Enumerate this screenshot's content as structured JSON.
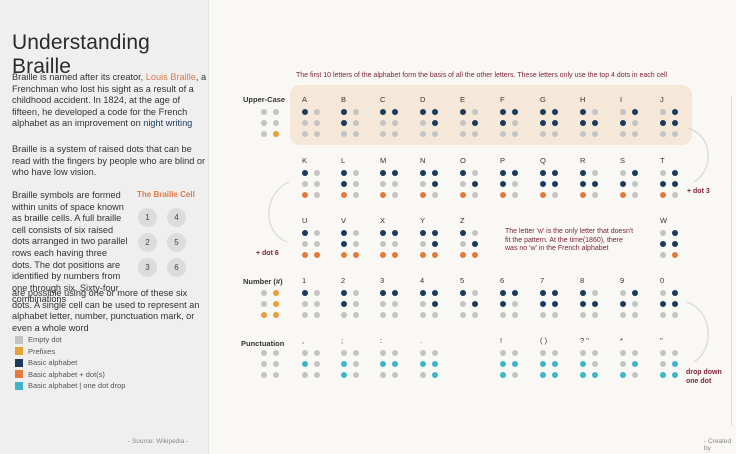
{
  "title": "Understanding Braille",
  "intro": {
    "p1_a": "Braille is named after its creator, ",
    "p1_link": "Louis Braille",
    "p1_b": ", a Frenchman who lost his sight as a result of a childhood accident. In 1824, at the age of fifteen, he developed a code for the French alphabet as an improvement on ",
    "p1_link2": "night writing",
    "p2": "Braille is a system of raised dots that can be read with the fingers by people who are blind or who have low vision.",
    "p3": "Braille symbols are formed within units of space known as braille cells. A full braille cell consists of six raised dots arranged in two parallel rows each having three dots. The dot positions are identified by numbers from one through six. Sixty-four combinations",
    "p4": "are possible using one or more of these six dots. A single cell can be used to represent an alphabet letter, number, punctuation mark, or even a whole word"
  },
  "cell": {
    "title": "The Braille Cell",
    "numbers": [
      "1",
      "2",
      "3",
      "4",
      "5",
      "6"
    ]
  },
  "legend": [
    {
      "label": "Empty dot",
      "color": "#c4c4c4"
    },
    {
      "label": "Prefixes",
      "color": "#e8a03a"
    },
    {
      "label": "Basic alphabet",
      "color": "#1b3a5c"
    },
    {
      "label": "Basic alphabet + dot(s)",
      "color": "#e57a3c"
    },
    {
      "label": "Basic alphabet | one dot drop",
      "color": "#3fb5c8"
    }
  ],
  "source": "- Source: Wikipedia -",
  "credit": "- Created by",
  "chart_intro": "The first 10 letters of the alphabet form the basis of all the other letters. These letters only use the top 4 dots in each cell",
  "row_labels": {
    "upper": "Upper-Case",
    "number": "Number (#)",
    "punct": "Punctuation"
  },
  "notes": {
    "dot3": "+ dot 3",
    "dot6": "+ dot 6",
    "drop_a": "drop down",
    "drop_b": "one dot",
    "w": "The letter 'w' is the only letter that doesn't fit the pattern. At the time(1860), there was no 'w' in the French alphabet"
  },
  "rows": [
    {
      "prefix": "000001",
      "cells": [
        {
          "label": "A",
          "pattern": "100000",
          "kind": "basic"
        },
        {
          "label": "B",
          "pattern": "110000",
          "kind": "basic"
        },
        {
          "label": "C",
          "pattern": "100100",
          "kind": "basic"
        },
        {
          "label": "D",
          "pattern": "100110",
          "kind": "basic"
        },
        {
          "label": "E",
          "pattern": "100010",
          "kind": "basic"
        },
        {
          "label": "F",
          "pattern": "110100",
          "kind": "basic"
        },
        {
          "label": "G",
          "pattern": "110110",
          "kind": "basic"
        },
        {
          "label": "H",
          "pattern": "110010",
          "kind": "basic"
        },
        {
          "label": "I",
          "pattern": "010100",
          "kind": "basic"
        },
        {
          "label": "J",
          "pattern": "010110",
          "kind": "basic"
        }
      ]
    },
    {
      "prefix": "",
      "cells": [
        {
          "label": "K",
          "pattern": "101000",
          "kind": "plus"
        },
        {
          "label": "L",
          "pattern": "111000",
          "kind": "plus"
        },
        {
          "label": "M",
          "pattern": "101100",
          "kind": "plus"
        },
        {
          "label": "N",
          "pattern": "101110",
          "kind": "plus"
        },
        {
          "label": "O",
          "pattern": "101010",
          "kind": "plus"
        },
        {
          "label": "P",
          "pattern": "111100",
          "kind": "plus"
        },
        {
          "label": "Q",
          "pattern": "111110",
          "kind": "plus"
        },
        {
          "label": "R",
          "pattern": "111010",
          "kind": "plus"
        },
        {
          "label": "S",
          "pattern": "011100",
          "kind": "plus"
        },
        {
          "label": "T",
          "pattern": "011110",
          "kind": "plus"
        }
      ]
    },
    {
      "prefix": "",
      "cells": [
        {
          "label": "U",
          "pattern": "101001",
          "kind": "plus"
        },
        {
          "label": "V",
          "pattern": "111001",
          "kind": "plus"
        },
        {
          "label": "X",
          "pattern": "101101",
          "kind": "plus"
        },
        {
          "label": "Y",
          "pattern": "101111",
          "kind": "plus"
        },
        {
          "label": "Z",
          "pattern": "101011",
          "kind": "plus"
        },
        null,
        null,
        null,
        null,
        {
          "label": "W",
          "pattern": "010111",
          "kind": "plus"
        }
      ]
    },
    {
      "prefix": "001111",
      "cells": [
        {
          "label": "1",
          "pattern": "100000",
          "kind": "basic"
        },
        {
          "label": "2",
          "pattern": "110000",
          "kind": "basic"
        },
        {
          "label": "3",
          "pattern": "100100",
          "kind": "basic"
        },
        {
          "label": "4",
          "pattern": "100110",
          "kind": "basic"
        },
        {
          "label": "5",
          "pattern": "100010",
          "kind": "basic"
        },
        {
          "label": "6",
          "pattern": "110100",
          "kind": "basic"
        },
        {
          "label": "7",
          "pattern": "110110",
          "kind": "basic"
        },
        {
          "label": "8",
          "pattern": "110010",
          "kind": "basic"
        },
        {
          "label": "9",
          "pattern": "010100",
          "kind": "basic"
        },
        {
          "label": "0",
          "pattern": "010110",
          "kind": "basic"
        }
      ]
    },
    {
      "prefix": "",
      "cells": [
        {
          "label": ",",
          "pattern": "010000",
          "kind": "drop"
        },
        {
          "label": ";",
          "pattern": "011000",
          "kind": "drop"
        },
        {
          "label": ":",
          "pattern": "010010",
          "kind": "drop"
        },
        {
          "label": ".",
          "pattern": "010011",
          "kind": "drop"
        },
        null,
        {
          "label": "!",
          "pattern": "011010",
          "kind": "drop"
        },
        {
          "label": "( )",
          "pattern": "011011",
          "kind": "drop"
        },
        {
          "label": "? \"",
          "pattern": "011001",
          "kind": "drop"
        },
        {
          "label": "*",
          "pattern": "001010",
          "kind": "drop"
        },
        {
          "label": "\"",
          "pattern": "001011",
          "kind": "drop"
        }
      ]
    }
  ]
}
